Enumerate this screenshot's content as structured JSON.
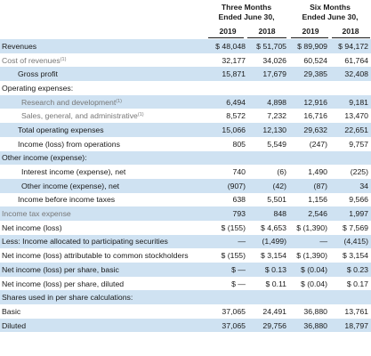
{
  "header": {
    "three_months": "Three Months",
    "three_months_sub": "Ended June 30,",
    "six_months": "Six Months",
    "six_months_sub": "Ended June 30,",
    "years": [
      "2019",
      "2018",
      "2019",
      "2018"
    ]
  },
  "rows": [
    {
      "label": "Revenues",
      "note": "",
      "values": [
        "$ 48,048",
        "$ 51,705",
        "$ 89,909",
        "$ 94,172"
      ]
    },
    {
      "label": "Cost of revenues",
      "note": "(1)",
      "values": [
        "32,177",
        "34,026",
        "60,524",
        "61,764"
      ]
    },
    {
      "label": "Gross profit",
      "note": "",
      "values": [
        "15,871",
        "17,679",
        "29,385",
        "32,408"
      ]
    },
    {
      "label": "Operating expenses:",
      "note": "",
      "values": [
        "",
        "",
        "",
        ""
      ]
    },
    {
      "label": "Research and development",
      "note": "(1)",
      "values": [
        "6,494",
        "4,898",
        "12,916",
        "9,181"
      ]
    },
    {
      "label": "Sales, general, and administrative",
      "note": "(1)",
      "values": [
        "8,572",
        "7,232",
        "16,716",
        "13,470"
      ]
    },
    {
      "label": "Total operating expenses",
      "note": "",
      "values": [
        "15,066",
        "12,130",
        "29,632",
        "22,651"
      ]
    },
    {
      "label": "Income (loss) from operations",
      "note": "",
      "values": [
        "805",
        "5,549",
        "(247)",
        "9,757"
      ]
    },
    {
      "label": "Other income (expense):",
      "note": "",
      "values": [
        "",
        "",
        "",
        ""
      ]
    },
    {
      "label": "Interest income (expense), net",
      "note": "",
      "values": [
        "740",
        "(6)",
        "1,490",
        "(225)"
      ]
    },
    {
      "label": "Other income (expense), net",
      "note": "",
      "values": [
        "(907)",
        "(42)",
        "(87)",
        "34"
      ]
    },
    {
      "label": "Income before income taxes",
      "note": "",
      "values": [
        "638",
        "5,501",
        "1,156",
        "9,566"
      ]
    },
    {
      "label": "Income tax expense",
      "note": "",
      "values": [
        "793",
        "848",
        "2,546",
        "1,997"
      ]
    },
    {
      "label": "Net income (loss)",
      "note": "",
      "values": [
        "$ (155)",
        "$ 4,653",
        "$ (1,390)",
        "$ 7,569"
      ]
    },
    {
      "label": "Less: Income allocated to participating securities",
      "note": "",
      "values": [
        "—",
        "(1,499)",
        "—",
        "(4,415)"
      ]
    },
    {
      "label": "Net income (loss) attributable to common stockholders",
      "note": "",
      "values": [
        "$ (155)",
        "$ 3,154",
        "$ (1,390)",
        "$ 3,154"
      ]
    },
    {
      "label": "Net income (loss) per share, basic",
      "note": "",
      "values": [
        "$ —",
        "$ 0.13",
        "$ (0.04)",
        "$ 0.23"
      ]
    },
    {
      "label": "Net income (loss) per share, diluted",
      "note": "",
      "values": [
        "$ —",
        "$ 0.11",
        "$ (0.04)",
        "$ 0.17"
      ]
    },
    {
      "label": "Shares used in per share calculations:",
      "note": "",
      "values": [
        "",
        "",
        "",
        ""
      ]
    },
    {
      "label": "Basic",
      "note": "",
      "values": [
        "37,065",
        "24,491",
        "36,880",
        "13,761"
      ]
    },
    {
      "label": "Diluted",
      "note": "",
      "values": [
        "37,065",
        "29,756",
        "36,880",
        "18,797"
      ]
    }
  ]
}
